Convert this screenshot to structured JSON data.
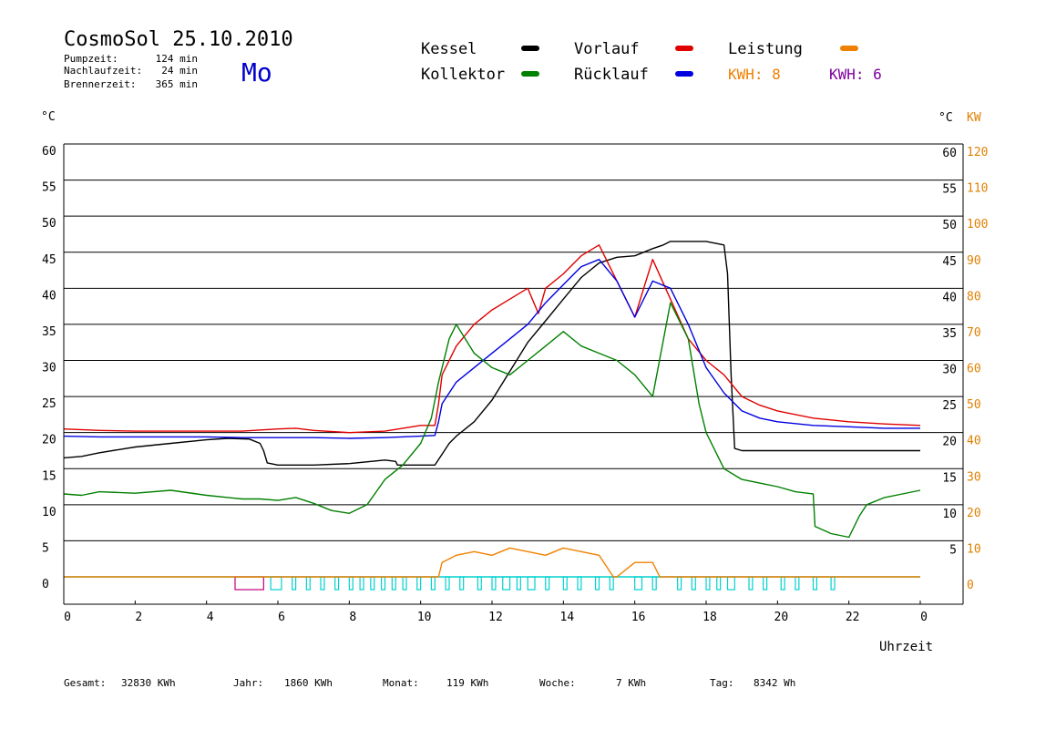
{
  "header": {
    "title": "CosmoSol 25.10.2010",
    "day": "Mo",
    "stats": [
      {
        "label": "Pumpzeit:",
        "value": "124 min"
      },
      {
        "label": "Nachlaufzeit:",
        "value": "24 min"
      },
      {
        "label": "Brennerzeit:",
        "value": "365 min"
      }
    ]
  },
  "legend": {
    "items": [
      {
        "label": "Kessel",
        "color": "#000000"
      },
      {
        "label": "Vorlauf",
        "color": "#e00000"
      },
      {
        "label": "Leistung",
        "color": "#f08000"
      },
      {
        "label": "Kollektor",
        "color": "#008000"
      },
      {
        "label": "Rücklauf",
        "color": "#0000e0"
      }
    ],
    "kwh": [
      {
        "label": "KWH: 8",
        "color": "#f08000"
      },
      {
        "label": "KWH: 6",
        "color": "#8000a0"
      }
    ]
  },
  "footer": [
    {
      "label": "Gesamt:",
      "value": "32830 KWh"
    },
    {
      "label": "Jahr:",
      "value": "1860 KWh"
    },
    {
      "label": "Monat:",
      "value": "119 KWh"
    },
    {
      "label": "Woche:",
      "value": "7 KWh"
    },
    {
      "label": "Tag:",
      "value": "8342 Wh"
    }
  ],
  "colors": {
    "kessel": "#000000",
    "vorlauf": "#e00000",
    "ruecklauf": "#0000e0",
    "kollektor": "#008000",
    "leistung": "#f08000",
    "leistung2": "#8000a0",
    "pump": "#00d0d0",
    "burner": "#c00080",
    "axis_right_kw": "#e08000"
  },
  "chart_data": {
    "type": "line",
    "xlabel": "Uhrzeit",
    "ylabel_left": "°C",
    "ylabel_right": "°C",
    "ylabel_right2": "KW",
    "xlim": [
      0,
      24
    ],
    "ylim": [
      0,
      60
    ],
    "ylim_right2": [
      0,
      120
    ],
    "xticks": [
      "0",
      "2",
      "4",
      "6",
      "8",
      "10",
      "12",
      "14",
      "16",
      "18",
      "20",
      "22",
      "0"
    ],
    "yticks_left": [
      "0",
      "5",
      "10",
      "15",
      "20",
      "25",
      "30",
      "35",
      "40",
      "45",
      "50",
      "55",
      "60"
    ],
    "yticks_right": [
      "5",
      "10",
      "15",
      "20",
      "25",
      "30",
      "35",
      "40",
      "45",
      "50",
      "55",
      "60"
    ],
    "yticks_right2": [
      "0",
      "10",
      "20",
      "30",
      "40",
      "50",
      "60",
      "70",
      "80",
      "90",
      "100",
      "110",
      "120"
    ],
    "grid": true,
    "series": [
      {
        "name": "Kessel",
        "key": "kessel",
        "x": [
          0,
          0.5,
          1,
          2,
          3,
          4,
          4.6,
          5.2,
          5.5,
          5.6,
          5.7,
          6,
          7,
          8,
          9,
          9.3,
          9.35,
          10,
          10.4,
          10.6,
          10.8,
          11,
          11.5,
          12,
          12.5,
          13,
          13.5,
          14,
          14.5,
          15,
          15.5,
          16,
          16.5,
          16.8,
          17,
          17.5,
          18,
          18.5,
          18.6,
          18.7,
          18.8,
          19,
          20,
          21,
          22,
          23,
          24
        ],
        "y": [
          16.5,
          16.7,
          17.2,
          18,
          18.5,
          19,
          19.2,
          19.1,
          18.5,
          17.5,
          15.8,
          15.5,
          15.5,
          15.7,
          16.2,
          16,
          15.5,
          15.5,
          15.5,
          17,
          18.5,
          19.5,
          21.5,
          24.5,
          28.5,
          32.5,
          35.5,
          38.5,
          41.5,
          43.5,
          44.3,
          44.5,
          45.5,
          46,
          46.5,
          46.5,
          46.5,
          46,
          42,
          28,
          17.8,
          17.5,
          17.5,
          17.5,
          17.5,
          17.5,
          17.5
        ]
      },
      {
        "name": "Vorlauf",
        "key": "vorlauf",
        "x": [
          0,
          1,
          2,
          3,
          4,
          5,
          6,
          6.5,
          7,
          8,
          9,
          10,
          10.4,
          10.5,
          10.6,
          11,
          11.5,
          12,
          12.5,
          13,
          13.3,
          13.5,
          14,
          14.5,
          15,
          15.5,
          16,
          16.5,
          17,
          17.5,
          18,
          18.5,
          19,
          19.5,
          20,
          21,
          22,
          23,
          24
        ],
        "y": [
          20.5,
          20.3,
          20.2,
          20.2,
          20.2,
          20.2,
          20.5,
          20.6,
          20.3,
          20,
          20.2,
          21,
          21,
          24,
          28,
          32,
          35,
          37,
          38.5,
          40,
          36.5,
          40,
          42,
          44.5,
          46,
          41,
          36,
          44,
          38.5,
          33,
          30,
          28,
          25,
          23.8,
          23,
          22,
          21.5,
          21.2,
          21
        ]
      },
      {
        "name": "Rücklauf",
        "key": "ruecklauf",
        "x": [
          0,
          1,
          2,
          3,
          4,
          5,
          6,
          7,
          8,
          9,
          10,
          10.4,
          10.5,
          10.6,
          11,
          11.5,
          12,
          12.5,
          13,
          13.5,
          14,
          14.5,
          15,
          15.5,
          16,
          16.5,
          17,
          17.5,
          18,
          18.5,
          19,
          19.5,
          20,
          21,
          22,
          23,
          24
        ],
        "y": [
          19.5,
          19.4,
          19.4,
          19.4,
          19.4,
          19.3,
          19.3,
          19.3,
          19.2,
          19.3,
          19.5,
          19.6,
          21.5,
          24,
          27,
          29,
          31,
          33,
          35,
          38,
          40.5,
          43,
          44,
          41,
          36,
          41,
          40,
          35,
          29,
          25.5,
          23,
          22,
          21.5,
          21,
          20.8,
          20.6,
          20.6
        ]
      },
      {
        "name": "Kollektor",
        "key": "kollektor",
        "x": [
          0,
          0.5,
          1,
          2,
          3,
          4,
          5,
          5.5,
          6,
          6.5,
          7,
          7.5,
          8,
          8.5,
          9,
          9.5,
          10,
          10.3,
          10.5,
          10.8,
          11,
          11.5,
          12,
          12.5,
          13,
          13.5,
          14,
          14.5,
          15,
          15.5,
          16,
          16.5,
          17,
          17.5,
          17.8,
          18,
          18.5,
          19,
          19.5,
          20,
          20.5,
          21,
          21.05,
          21.5,
          22,
          22.3,
          22.5,
          23,
          23.5,
          24
        ],
        "y": [
          11.5,
          11.3,
          11.8,
          11.6,
          12,
          11.3,
          10.8,
          10.8,
          10.6,
          11,
          10.2,
          9.2,
          8.8,
          10,
          13.5,
          15.5,
          18.5,
          22,
          27,
          33,
          35,
          31,
          29,
          28,
          30,
          32,
          34,
          32,
          31,
          30,
          28,
          25,
          38,
          33,
          24,
          20,
          15,
          13.5,
          13,
          12.5,
          11.8,
          11.5,
          7,
          6,
          5.5,
          8.5,
          10,
          11,
          11.5,
          12
        ]
      },
      {
        "name": "Leistung",
        "key": "leistung",
        "axis": "kw",
        "x": [
          0,
          10.5,
          10.6,
          11,
          11.5,
          12,
          12.5,
          13,
          13.5,
          14,
          14.5,
          15,
          15.4,
          15.5,
          16,
          16.5,
          16.7,
          16.8,
          24
        ],
        "y": [
          0,
          0,
          2,
          3,
          3.5,
          3,
          4,
          3.5,
          3,
          4,
          3.5,
          3,
          0,
          0,
          2,
          2,
          0,
          0,
          0
        ]
      }
    ],
    "pump_intervals": [
      [
        4.8,
        5.6
      ],
      [
        5.8,
        6.1
      ],
      [
        6.4,
        6.5
      ],
      [
        6.8,
        6.9
      ],
      [
        7.2,
        7.3
      ],
      [
        7.6,
        7.7
      ],
      [
        8.0,
        8.1
      ],
      [
        8.3,
        8.4
      ],
      [
        8.6,
        8.7
      ],
      [
        8.9,
        9.0
      ],
      [
        9.2,
        9.3
      ],
      [
        9.5,
        9.6
      ],
      [
        9.9,
        10.0
      ],
      [
        10.3,
        10.4
      ],
      [
        10.7,
        10.8
      ],
      [
        11.1,
        11.2
      ],
      [
        11.6,
        11.7
      ],
      [
        12.0,
        12.1
      ],
      [
        12.3,
        12.5
      ],
      [
        12.7,
        12.8
      ],
      [
        13.0,
        13.2
      ],
      [
        13.5,
        13.6
      ],
      [
        14.0,
        14.1
      ],
      [
        14.4,
        14.5
      ],
      [
        14.9,
        15.0
      ],
      [
        15.3,
        15.4
      ],
      [
        16.0,
        16.2
      ],
      [
        16.5,
        16.6
      ],
      [
        17.2,
        17.3
      ],
      [
        17.6,
        17.7
      ],
      [
        18.0,
        18.1
      ],
      [
        18.3,
        18.4
      ],
      [
        18.6,
        18.8
      ],
      [
        19.2,
        19.3
      ],
      [
        19.6,
        19.7
      ],
      [
        20.1,
        20.2
      ],
      [
        20.5,
        20.6
      ],
      [
        21.0,
        21.1
      ],
      [
        21.5,
        21.6
      ]
    ]
  }
}
